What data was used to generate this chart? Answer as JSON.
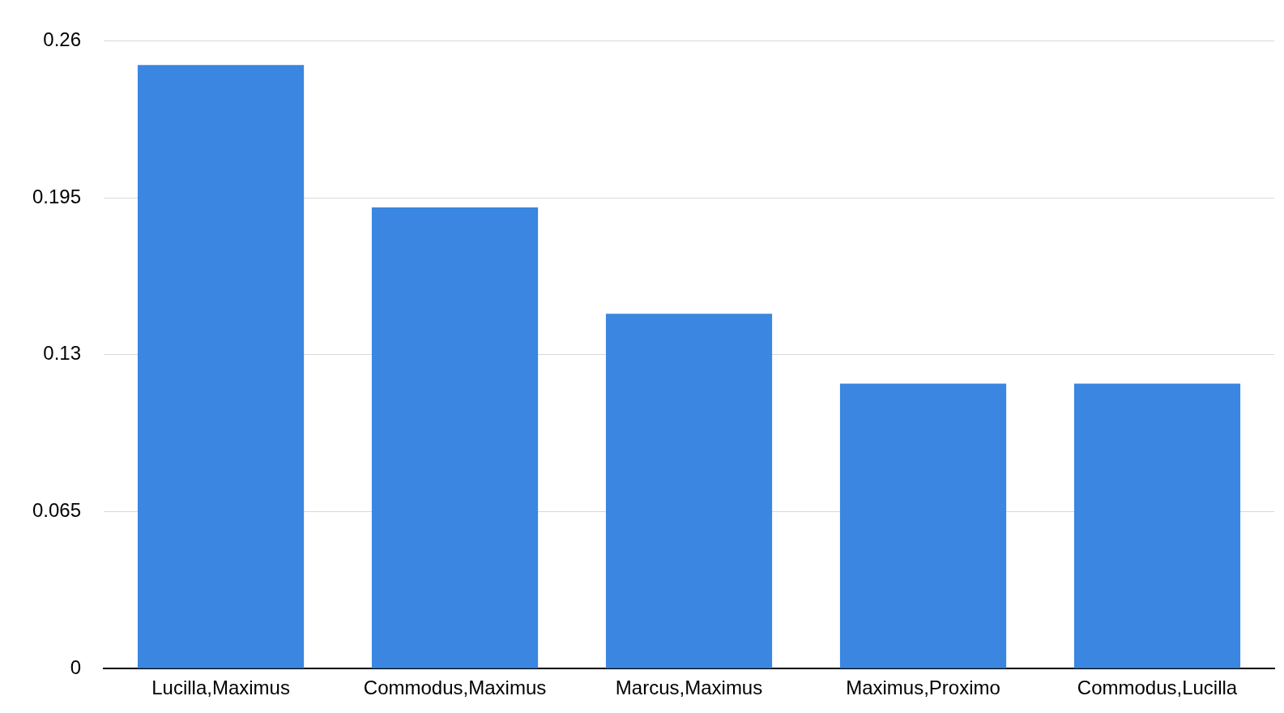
{
  "chart_data": {
    "type": "bar",
    "categories": [
      "Lucilla,Maximus",
      "Commodus,Maximus",
      "Marcus,Maximus",
      "Maximus,Proximo",
      "Commodus,Lucilla"
    ],
    "values": [
      0.25,
      0.191,
      0.147,
      0.118,
      0.118
    ],
    "color": "#3a86e0",
    "ylim": [
      0,
      0.26
    ],
    "yticks": [
      0,
      0.065,
      0.13,
      0.195,
      0.26
    ],
    "grid": "y",
    "legend": false
  }
}
